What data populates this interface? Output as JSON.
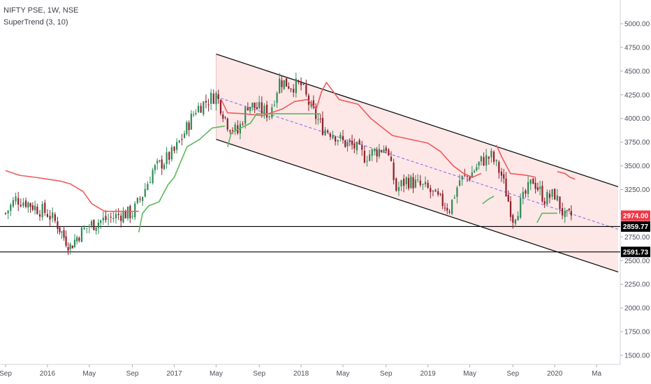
{
  "legend": {
    "symbol_line": "NIFTY PSE, 1W, NSE",
    "indicator_line": "SuperTrend (3, 10)"
  },
  "colors": {
    "up_candle": "#2e8b57",
    "down_candle": "#8e1f2a",
    "supertrend_up": "#5cb85c",
    "supertrend_down": "#f05a5a",
    "channel_fill": "#fde7e7",
    "channel_line": "#000000",
    "midline": "#7b68ee",
    "support_line": "#000000",
    "price_label_red": "#f23645",
    "price_label_black": "#000000"
  },
  "chart_data": {
    "type": "candlestick",
    "y_axis_ticks": [
      "5000.00",
      "4750.00",
      "4500.00",
      "4250.00",
      "4000.00",
      "3750.00",
      "3500.00",
      "3250.00",
      "3000.00",
      "2750.00",
      "2500.00",
      "2250.00",
      "2000.00",
      "1750.00",
      "1500.00"
    ],
    "x_axis_ticks": [
      "Sep",
      "2016",
      "May",
      "Sep",
      "2017",
      "May",
      "Sep",
      "2018",
      "May",
      "Sep",
      "2019",
      "May",
      "Sep",
      "2020",
      "Ma"
    ],
    "ylim": [
      1450,
      5180
    ],
    "price_labels": [
      {
        "value": "2974.00",
        "color": "red"
      },
      {
        "value": "2859.77",
        "color": "black"
      },
      {
        "value": "2591.73",
        "color": "black"
      }
    ],
    "horizontal_levels": [
      2859.77,
      2591.73
    ],
    "channel": {
      "upper": [
        [
          2017.33,
          4680
        ],
        [
          2020.5,
          3280
        ]
      ],
      "lower": [
        [
          2017.33,
          3780
        ],
        [
          2020.5,
          2380
        ]
      ],
      "mid": [
        [
          2017.33,
          4230
        ],
        [
          2020.5,
          2830
        ]
      ]
    },
    "supertrend_down_segments": [
      [
        [
          2015.67,
          3450
        ],
        [
          2015.78,
          3400
        ],
        [
          2015.9,
          3380
        ],
        [
          2016.0,
          3360
        ],
        [
          2016.1,
          3340
        ],
        [
          2016.18,
          3310
        ],
        [
          2016.28,
          3230
        ],
        [
          2016.35,
          3100
        ],
        [
          2016.45,
          3020
        ],
        [
          2016.6,
          3020
        ],
        [
          2016.72,
          3020
        ]
      ],
      [
        [
          2017.37,
          4200
        ],
        [
          2017.42,
          4060
        ],
        [
          2017.55,
          4050
        ],
        [
          2017.7,
          4030
        ],
        [
          2017.85,
          4100
        ],
        [
          2017.95,
          4180
        ],
        [
          2018.05,
          4200
        ],
        [
          2018.12,
          4100
        ],
        [
          2018.16,
          4280
        ],
        [
          2018.2,
          4380
        ],
        [
          2018.3,
          4200
        ],
        [
          2018.45,
          4150
        ],
        [
          2018.55,
          4000
        ],
        [
          2018.72,
          3820
        ],
        [
          2019.0,
          3740
        ],
        [
          2019.1,
          3650
        ],
        [
          2019.2,
          3500
        ],
        [
          2019.28,
          3420
        ],
        [
          2019.35,
          3380
        ],
        [
          2019.42,
          3420
        ]
      ],
      [
        [
          2019.54,
          3720
        ],
        [
          2019.58,
          3600
        ],
        [
          2019.65,
          3420
        ],
        [
          2019.78,
          3400
        ],
        [
          2019.85,
          3380
        ]
      ],
      [
        [
          2020.02,
          3440
        ],
        [
          2020.08,
          3420
        ],
        [
          2020.12,
          3380
        ],
        [
          2020.16,
          3360
        ]
      ]
    ],
    "supertrend_up_segments": [
      [
        [
          2016.72,
          2800
        ],
        [
          2016.75,
          3000
        ],
        [
          2016.8,
          3080
        ],
        [
          2016.88,
          3120
        ],
        [
          2016.95,
          3300
        ],
        [
          2017.0,
          3380
        ],
        [
          2017.1,
          3700
        ],
        [
          2017.2,
          3780
        ],
        [
          2017.3,
          3900
        ],
        [
          2017.4,
          3920
        ]
      ],
      [
        [
          2017.42,
          3700
        ],
        [
          2017.45,
          3850
        ],
        [
          2017.6,
          3950
        ],
        [
          2017.65,
          4050
        ],
        [
          2017.9,
          4050
        ],
        [
          2018.0,
          4050
        ],
        [
          2018.15,
          4050
        ]
      ],
      [
        [
          2019.43,
          3100
        ],
        [
          2019.48,
          3150
        ],
        [
          2019.52,
          3180
        ]
      ],
      [
        [
          2019.86,
          2900
        ],
        [
          2019.9,
          3000
        ],
        [
          2020.0,
          3000
        ],
        [
          2020.02,
          3000
        ]
      ]
    ],
    "candle_anchors": [
      [
        2015.67,
        3000
      ],
      [
        2015.75,
        3150
      ],
      [
        2015.83,
        3120
      ],
      [
        2015.92,
        3050
      ],
      [
        2016.0,
        3000
      ],
      [
        2016.08,
        2880
      ],
      [
        2016.13,
        2750
      ],
      [
        2016.18,
        2650
      ],
      [
        2016.25,
        2780
      ],
      [
        2016.33,
        2870
      ],
      [
        2016.42,
        2920
      ],
      [
        2016.5,
        2950
      ],
      [
        2016.58,
        2990
      ],
      [
        2016.67,
        3000
      ],
      [
        2016.75,
        3200
      ],
      [
        2016.83,
        3450
      ],
      [
        2016.92,
        3550
      ],
      [
        2017.0,
        3650
      ],
      [
        2017.08,
        3850
      ],
      [
        2017.17,
        4100
      ],
      [
        2017.25,
        4180
      ],
      [
        2017.33,
        4250
      ],
      [
        2017.42,
        3950
      ],
      [
        2017.5,
        3850
      ],
      [
        2017.58,
        4150
      ],
      [
        2017.67,
        4100
      ],
      [
        2017.75,
        4050
      ],
      [
        2017.83,
        4400
      ],
      [
        2017.92,
        4350
      ],
      [
        2018.0,
        4350
      ],
      [
        2018.08,
        4100
      ],
      [
        2018.17,
        3900
      ],
      [
        2018.25,
        3850
      ],
      [
        2018.33,
        3750
      ],
      [
        2018.42,
        3700
      ],
      [
        2018.5,
        3600
      ],
      [
        2018.58,
        3650
      ],
      [
        2018.67,
        3700
      ],
      [
        2018.75,
        3250
      ],
      [
        2018.83,
        3350
      ],
      [
        2018.92,
        3300
      ],
      [
        2019.0,
        3250
      ],
      [
        2019.08,
        3150
      ],
      [
        2019.17,
        3050
      ],
      [
        2019.25,
        3350
      ],
      [
        2019.33,
        3400
      ],
      [
        2019.42,
        3550
      ],
      [
        2019.5,
        3600
      ],
      [
        2019.58,
        3400
      ],
      [
        2019.67,
        2950
      ],
      [
        2019.75,
        3150
      ],
      [
        2019.83,
        3350
      ],
      [
        2019.92,
        3150
      ],
      [
        2020.0,
        3200
      ],
      [
        2020.08,
        2950
      ],
      [
        2020.13,
        2974
      ]
    ]
  }
}
